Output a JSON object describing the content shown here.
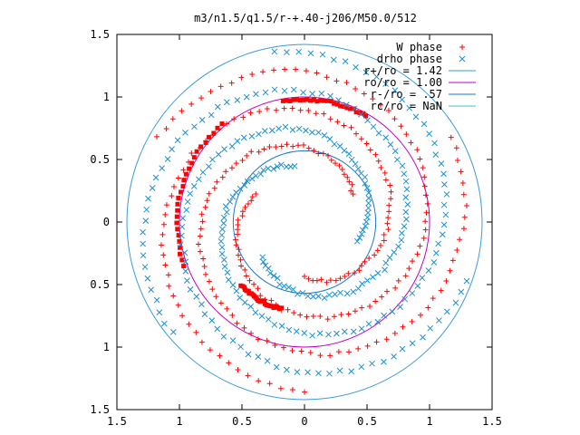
{
  "chart_data": {
    "type": "scatter",
    "title": "m3/n1.5/q1.5/r-+.40-j206/M50.0/512",
    "xlabel": "",
    "ylabel": "",
    "xlim": [
      -1.5,
      1.5
    ],
    "ylim": [
      -1.5,
      1.5
    ],
    "x_ticks": [
      {
        "value": -1.5,
        "label": "1.5"
      },
      {
        "value": -1.0,
        "label": "1"
      },
      {
        "value": -0.5,
        "label": "0.5"
      },
      {
        "value": 0,
        "label": "0"
      },
      {
        "value": 0.5,
        "label": "0.5"
      },
      {
        "value": 1.0,
        "label": "1"
      },
      {
        "value": 1.5,
        "label": "1.5"
      }
    ],
    "y_ticks": [
      {
        "value": 1.5,
        "label": "1.5"
      },
      {
        "value": 1.0,
        "label": "1"
      },
      {
        "value": 0.5,
        "label": "0.5"
      },
      {
        "value": 0,
        "label": "0"
      },
      {
        "value": -0.5,
        "label": "0.5"
      },
      {
        "value": -1.0,
        "label": "1"
      },
      {
        "value": -1.5,
        "label": "1.5"
      }
    ],
    "grid": false,
    "legend_position": "top-right",
    "series": [
      {
        "name": "W phase",
        "marker": "plus",
        "color": "#ff0000",
        "spiral_arms": [
          {
            "r": [
              0.45,
              1.35
            ],
            "theta_deg": [
              150,
              510
            ]
          },
          {
            "r": [
              0.45,
              1.35
            ],
            "theta_deg": [
              270,
              630
            ]
          },
          {
            "r": [
              0.45,
              1.35
            ],
            "theta_deg": [
              390,
              750
            ]
          }
        ],
        "dense_arcs": [
          {
            "r": 1.02,
            "theta_deg": [
              130,
              200
            ]
          },
          {
            "r": 0.98,
            "theta_deg": [
              60,
              100
            ]
          },
          {
            "r": 0.72,
            "theta_deg": [
              225,
              255
            ]
          }
        ]
      },
      {
        "name": "drho phase",
        "marker": "x",
        "color": "#1e90d0",
        "spiral_arms": [
          {
            "r": [
              0.45,
              1.38
            ],
            "theta_deg": [
              100,
              460
            ]
          },
          {
            "r": [
              0.45,
              1.38
            ],
            "theta_deg": [
              220,
              580
            ]
          },
          {
            "r": [
              0.45,
              1.38
            ],
            "theta_deg": [
              340,
              700
            ]
          }
        ]
      }
    ],
    "circles": [
      {
        "name": "r+/ro = 1.42",
        "r": 1.42,
        "color": "#3a9ad9"
      },
      {
        "name": "ro/ro = 1.00",
        "r": 1.0,
        "color": "#c000c0"
      },
      {
        "name": "r-/ro = .57",
        "r": 0.57,
        "color": "#1e78d0"
      },
      {
        "name": "rc/ro = NaN",
        "r": null,
        "color": "#40c0d0"
      }
    ],
    "legend": [
      {
        "label": "W phase",
        "marker": "plus",
        "color": "#ff0000"
      },
      {
        "label": "drho phase",
        "marker": "x",
        "color": "#1e90d0"
      },
      {
        "label": "r+/ro = 1.42",
        "marker": "line",
        "color": "#3a9ad9"
      },
      {
        "label": "ro/ro = 1.00",
        "marker": "line",
        "color": "#c000c0"
      },
      {
        "label": "r-/ro = .57",
        "marker": "line",
        "color": "#1e78d0"
      },
      {
        "label": "rc/ro = NaN",
        "marker": "line",
        "color": "#40c0d0"
      }
    ]
  }
}
